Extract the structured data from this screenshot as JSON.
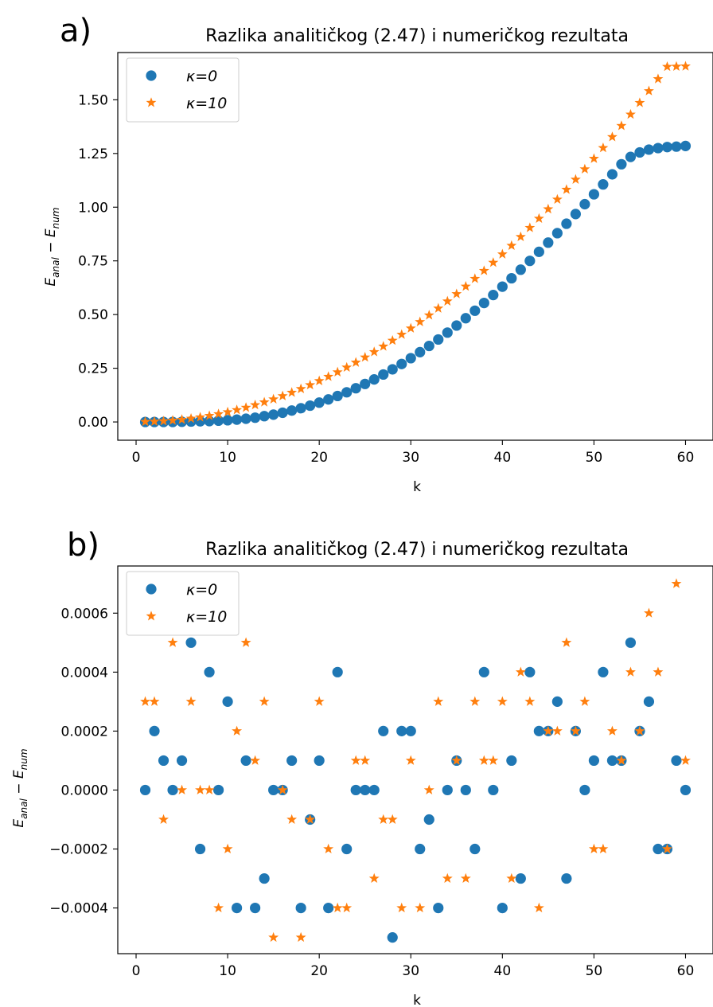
{
  "chart_data": [
    {
      "type": "scatter",
      "panel_label": "a)",
      "title": "Razlika analitičkog (2.47) i numeričkog rezultata",
      "xlabel": "k",
      "ylabel": "E_anal − E_num",
      "xlim": [
        -2,
        63
      ],
      "ylim": [
        -0.085,
        1.72
      ],
      "xticks": [
        0,
        10,
        20,
        30,
        40,
        50,
        60
      ],
      "xtick_labels": [
        "0",
        "10",
        "20",
        "30",
        "40",
        "50",
        "60"
      ],
      "yticks": [
        0.0,
        0.25,
        0.5,
        0.75,
        1.0,
        1.25,
        1.5
      ],
      "ytick_labels": [
        "0.00",
        "0.25",
        "0.50",
        "0.75",
        "1.00",
        "1.25",
        "1.50"
      ],
      "legend_position": "upper left",
      "x": [
        1,
        2,
        3,
        4,
        5,
        6,
        7,
        8,
        9,
        10,
        11,
        12,
        13,
        14,
        15,
        16,
        17,
        18,
        19,
        20,
        21,
        22,
        23,
        24,
        25,
        26,
        27,
        28,
        29,
        30,
        31,
        32,
        33,
        34,
        35,
        36,
        37,
        38,
        39,
        40,
        41,
        42,
        43,
        44,
        45,
        46,
        47,
        48,
        49,
        50,
        51,
        52,
        53,
        54,
        55,
        56,
        57,
        58,
        59,
        60
      ],
      "series": [
        {
          "name": "κ=0",
          "marker": "circle",
          "color": "#1f77b4",
          "values": [
            0.0,
            0.0,
            0.0,
            0.0,
            0.001,
            0.002,
            0.003,
            0.004,
            0.006,
            0.008,
            0.011,
            0.015,
            0.02,
            0.027,
            0.034,
            0.043,
            0.053,
            0.064,
            0.076,
            0.09,
            0.105,
            0.121,
            0.138,
            0.157,
            0.177,
            0.198,
            0.221,
            0.245,
            0.27,
            0.297,
            0.325,
            0.354,
            0.384,
            0.416,
            0.449,
            0.483,
            0.518,
            0.554,
            0.591,
            0.63,
            0.669,
            0.709,
            0.75,
            0.792,
            0.835,
            0.879,
            0.923,
            0.968,
            1.014,
            1.06,
            1.106,
            1.153,
            1.2,
            1.234,
            1.255,
            1.268,
            1.275,
            1.28,
            1.282,
            1.285
          ]
        },
        {
          "name": "κ=10",
          "marker": "star",
          "color": "#ff7f0e",
          "values": [
            0.001,
            0.002,
            0.004,
            0.007,
            0.011,
            0.016,
            0.022,
            0.029,
            0.037,
            0.046,
            0.056,
            0.067,
            0.079,
            0.092,
            0.106,
            0.121,
            0.137,
            0.154,
            0.172,
            0.191,
            0.211,
            0.232,
            0.254,
            0.277,
            0.301,
            0.326,
            0.352,
            0.379,
            0.407,
            0.436,
            0.466,
            0.497,
            0.529,
            0.562,
            0.596,
            0.631,
            0.667,
            0.704,
            0.742,
            0.781,
            0.821,
            0.862,
            0.904,
            0.947,
            0.991,
            1.036,
            1.082,
            1.129,
            1.177,
            1.226,
            1.276,
            1.327,
            1.379,
            1.432,
            1.486,
            1.541,
            1.597,
            1.654,
            1.655,
            1.656
          ]
        }
      ]
    },
    {
      "type": "scatter",
      "panel_label": "b)",
      "title": "Razlika analitičkog (2.47) i numeričkog rezultata",
      "xlabel": "k",
      "ylabel": "E_anal − E_num",
      "xlim": [
        -2,
        63
      ],
      "ylim": [
        -0.000555,
        0.00076
      ],
      "xticks": [
        0,
        10,
        20,
        30,
        40,
        50,
        60
      ],
      "xtick_labels": [
        "0",
        "10",
        "20",
        "30",
        "40",
        "50",
        "60"
      ],
      "yticks": [
        -0.0004,
        -0.0002,
        0.0,
        0.0002,
        0.0004,
        0.0006
      ],
      "ytick_labels": [
        "−0.0004",
        "−0.0002",
        "0.0000",
        "0.0002",
        "0.0004",
        "0.0006"
      ],
      "legend_position": "upper left",
      "x": [
        1,
        2,
        3,
        4,
        5,
        6,
        7,
        8,
        9,
        10,
        11,
        12,
        13,
        14,
        15,
        16,
        17,
        18,
        19,
        20,
        21,
        22,
        23,
        24,
        25,
        26,
        27,
        28,
        29,
        30,
        31,
        32,
        33,
        34,
        35,
        36,
        37,
        38,
        39,
        40,
        41,
        42,
        43,
        44,
        45,
        46,
        47,
        48,
        49,
        50,
        51,
        52,
        53,
        54,
        55,
        56,
        57,
        58,
        59,
        60
      ],
      "series": [
        {
          "name": "κ=0",
          "marker": "circle",
          "color": "#1f77b4",
          "values": [
            0.0,
            0.0002,
            0.0001,
            0.0,
            0.0001,
            0.0005,
            -0.0002,
            0.0004,
            0.0,
            0.0003,
            -0.0004,
            0.0001,
            -0.0004,
            -0.0003,
            0.0,
            0.0,
            0.0001,
            -0.0004,
            -0.0001,
            0.0001,
            -0.0004,
            0.0004,
            -0.0002,
            0.0,
            0.0,
            0.0,
            0.0002,
            -0.0005,
            0.0002,
            0.0002,
            -0.0002,
            -0.0001,
            -0.0004,
            0.0,
            0.0001,
            0.0,
            -0.0002,
            0.0004,
            0.0,
            -0.0004,
            0.0001,
            -0.0003,
            0.0004,
            0.0002,
            0.0002,
            0.0003,
            -0.0003,
            0.0002,
            0.0,
            0.0001,
            0.0004,
            0.0001,
            0.0001,
            0.0005,
            0.0002,
            0.0003,
            -0.0002,
            -0.0002,
            0.0001,
            0.0
          ]
        },
        {
          "name": "κ=10",
          "marker": "star",
          "color": "#ff7f0e",
          "values": [
            0.0003,
            0.0003,
            -0.0001,
            0.0005,
            0.0,
            0.0003,
            0.0,
            0.0,
            -0.0004,
            -0.0002,
            0.0002,
            0.0005,
            0.0001,
            0.0003,
            -0.0005,
            0.0,
            -0.0001,
            -0.0005,
            -0.0001,
            0.0003,
            -0.0002,
            -0.0004,
            -0.0004,
            0.0001,
            0.0001,
            -0.0003,
            -0.0001,
            -0.0001,
            -0.0004,
            0.0001,
            -0.0004,
            0.0,
            0.0003,
            -0.0003,
            0.0001,
            -0.0003,
            0.0003,
            0.0001,
            0.0001,
            0.0003,
            -0.0003,
            0.0004,
            0.0003,
            -0.0004,
            0.0002,
            0.0002,
            0.0005,
            0.0002,
            0.0003,
            -0.0002,
            -0.0002,
            0.0002,
            0.0001,
            0.0004,
            0.0002,
            0.0006,
            0.0004,
            -0.0002,
            0.0007,
            0.0001
          ]
        }
      ]
    }
  ]
}
